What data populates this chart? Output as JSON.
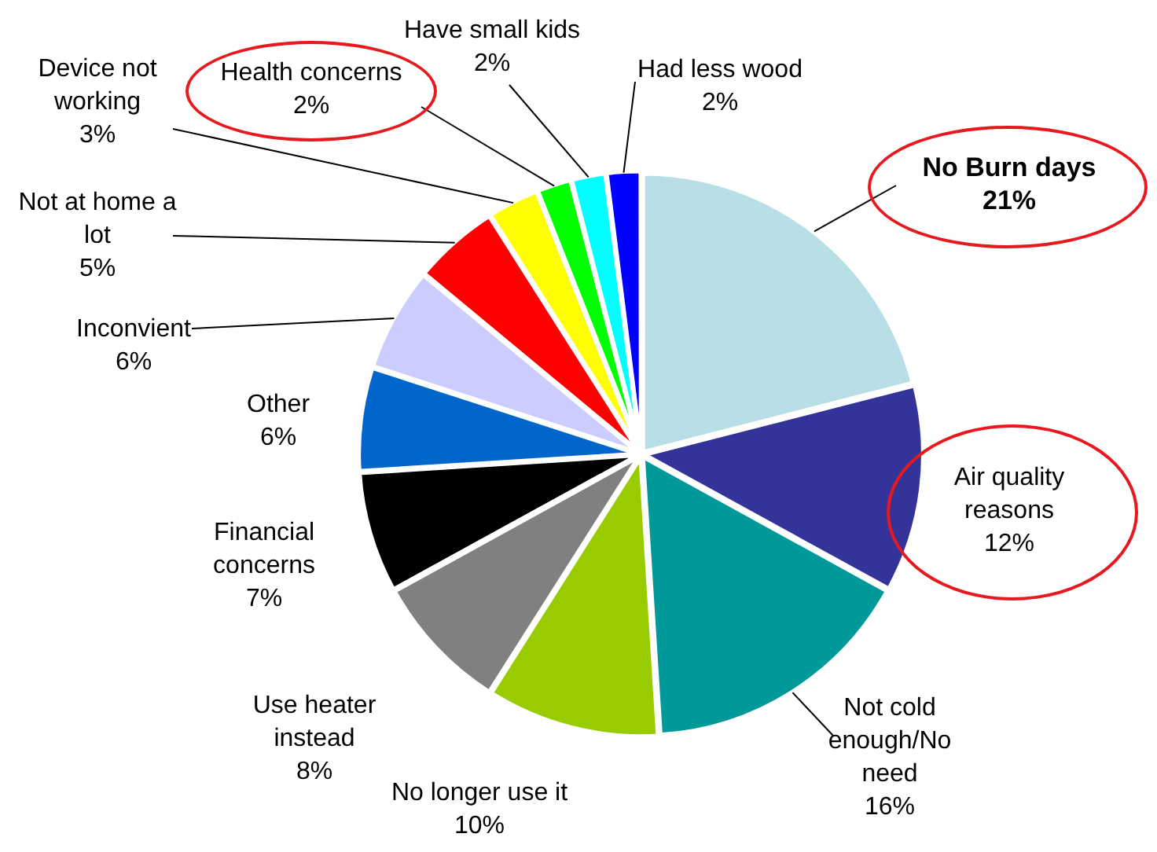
{
  "chart_data": {
    "type": "pie",
    "categories": [
      "No Burn days",
      "Air quality reasons",
      "Not cold enough/No need",
      "No longer use it",
      "Use heater instead",
      "Financial concerns",
      "Other",
      "Inconvient",
      "Not at home a lot",
      "Device not working",
      "Health concerns",
      "Have small kids",
      "Had less wood"
    ],
    "values": [
      21,
      12,
      16,
      10,
      8,
      7,
      6,
      6,
      5,
      3,
      2,
      2,
      2
    ],
    "value_labels": [
      "21%",
      "12%",
      "16%",
      "10%",
      "8%",
      "7%",
      "6%",
      "6%",
      "5%",
      "3%",
      "2%",
      "2%",
      "2%"
    ],
    "colors": [
      "#b9dfe6",
      "#333399",
      "#009999",
      "#99cc00",
      "#808080",
      "#000000",
      "#0066cc",
      "#ccccff",
      "#ff0000",
      "#ffff00",
      "#00ff00",
      "#00ffff",
      "#0000ff"
    ]
  }
}
